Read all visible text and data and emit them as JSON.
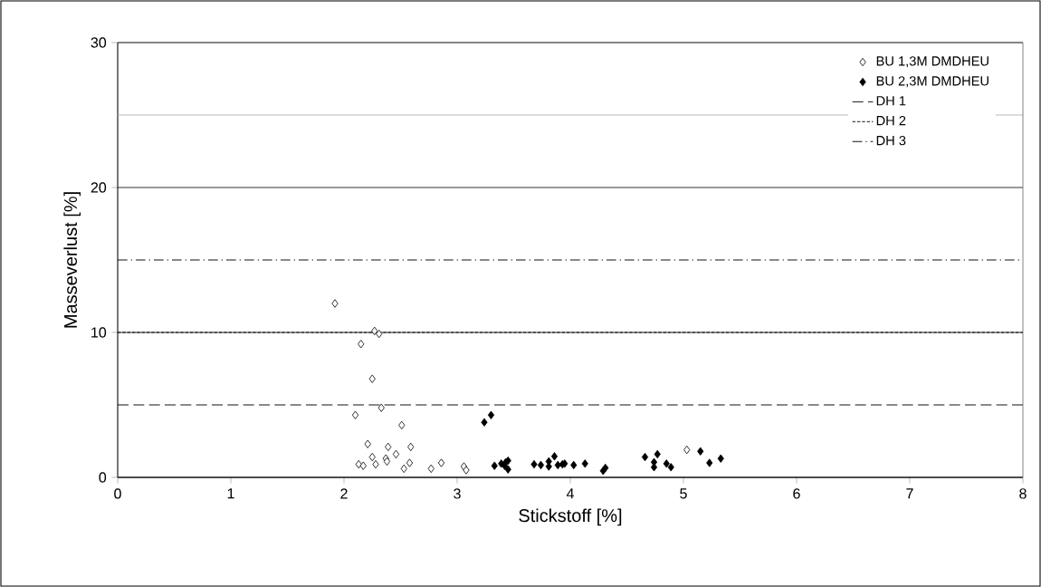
{
  "chart_data": {
    "type": "scatter",
    "xlabel": "Stickstoff [%]",
    "ylabel": "Masseverlust [%]",
    "xlim": [
      0,
      8
    ],
    "ylim": [
      0,
      30
    ],
    "xticks": [
      0,
      1,
      2,
      3,
      4,
      5,
      6,
      7,
      8
    ],
    "yticks": [
      0,
      10,
      20,
      30
    ],
    "grid": "y",
    "legend": "top right",
    "marker": "diamond",
    "series": [
      {
        "name": "BU 1,3M DMDHEU",
        "color": "#ffffff",
        "x": [
          1.92,
          2.27,
          2.31,
          2.15,
          2.25,
          2.33,
          2.1,
          2.51,
          2.21,
          2.39,
          2.59,
          2.25,
          2.46,
          2.37,
          2.38,
          2.13,
          2.17,
          2.28,
          2.53,
          2.58,
          2.77,
          2.86,
          3.06,
          3.08,
          5.03
        ],
        "values": [
          12.0,
          10.1,
          9.9,
          9.2,
          6.8,
          4.8,
          4.3,
          3.6,
          2.3,
          2.1,
          2.1,
          1.4,
          1.6,
          1.3,
          1.1,
          0.9,
          0.8,
          0.9,
          0.6,
          1.0,
          0.6,
          1.0,
          0.75,
          0.5,
          1.9
        ]
      },
      {
        "name": "BU 2,3M DMDHEU",
        "color": "#000000",
        "x": [
          3.24,
          3.3,
          3.33,
          3.39,
          3.43,
          3.45,
          3.42,
          3.45,
          3.68,
          3.74,
          3.81,
          3.86,
          3.81,
          3.89,
          3.93,
          3.95,
          4.03,
          4.13,
          4.29,
          4.31,
          4.66,
          4.77,
          4.74,
          4.74,
          4.85,
          4.89,
          5.15,
          5.23,
          5.33
        ],
        "values": [
          3.8,
          4.3,
          0.8,
          0.95,
          1.05,
          1.15,
          0.8,
          0.55,
          0.9,
          0.85,
          1.1,
          1.45,
          0.75,
          0.85,
          0.9,
          0.95,
          0.85,
          0.95,
          0.45,
          0.65,
          1.4,
          1.6,
          1.05,
          0.7,
          0.95,
          0.7,
          1.8,
          1.0,
          1.3
        ]
      }
    ],
    "ref_lines": [
      {
        "axis": "y",
        "value": 5,
        "label": "DH 1",
        "color": "#000000",
        "line_style": "dashed"
      },
      {
        "axis": "y",
        "value": 10,
        "label": "DH 2",
        "color": "#000000",
        "line_style": "dotted"
      },
      {
        "axis": "y",
        "value": 15,
        "label": "DH 3",
        "color": "#000000",
        "line_style": "dashdot"
      },
      {
        "axis": "y",
        "value": 25,
        "color": "#b4b4b4",
        "line_style": "solid"
      }
    ]
  }
}
